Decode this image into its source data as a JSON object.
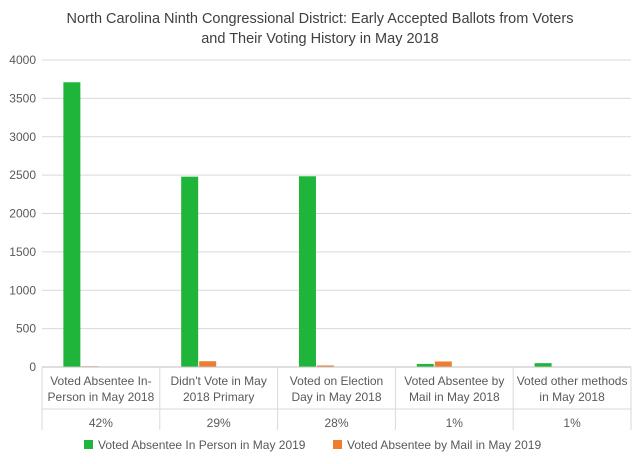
{
  "chart_data": {
    "type": "bar",
    "title_lines": [
      "North Carolina Ninth Congressional District: Early Accepted Ballots from Voters",
      "and Their Voting History in May 2018"
    ],
    "categories": [
      {
        "label_lines": [
          "Voted Absentee In-",
          "Person in May 2018"
        ],
        "share": "42%"
      },
      {
        "label_lines": [
          "Didn't Vote in May",
          "2018 Primary"
        ],
        "share": "29%"
      },
      {
        "label_lines": [
          "Voted on Election",
          "Day in May 2018"
        ],
        "share": "28%"
      },
      {
        "label_lines": [
          "Voted Absentee by",
          "Mail in May 2018"
        ],
        "share": "1%"
      },
      {
        "label_lines": [
          "Voted other methods",
          "in May 2018"
        ],
        "share": "1%"
      }
    ],
    "series": [
      {
        "name": "Voted Absentee In Person in May 2019",
        "color": "#1fb53b",
        "values": [
          3710,
          2480,
          2485,
          40,
          50
        ]
      },
      {
        "name": "Voted Absentee by Mail in May 2019",
        "color": "#ee7d31",
        "values": [
          10,
          75,
          20,
          72,
          0
        ]
      }
    ],
    "ylim": [
      0,
      4000
    ],
    "yticks": [
      0,
      500,
      1000,
      1500,
      2000,
      2500,
      3000,
      3500,
      4000
    ],
    "grid": true,
    "legend_position": "bottom"
  }
}
